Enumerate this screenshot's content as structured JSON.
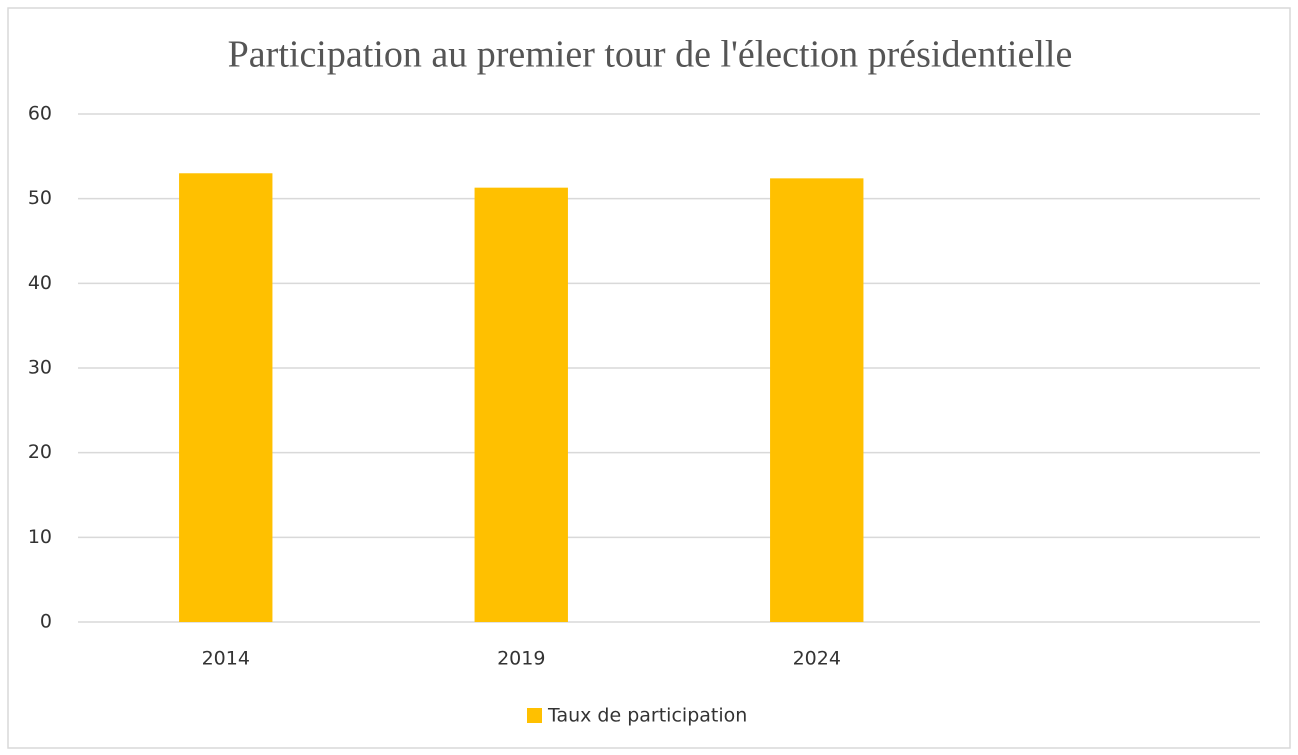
{
  "chart_data": {
    "type": "bar",
    "title": "Participation au premier tour de l'élection présidentielle",
    "categories": [
      "2014",
      "2019",
      "2024",
      null
    ],
    "series": [
      {
        "name": "Taux de participation",
        "color": "#ffc000",
        "values": [
          53.0,
          51.3,
          52.4,
          null
        ]
      }
    ],
    "ylim": [
      0,
      60
    ],
    "yticks": [
      0,
      10,
      20,
      30,
      40,
      50,
      60
    ],
    "grid": true,
    "legend": "bottom"
  }
}
